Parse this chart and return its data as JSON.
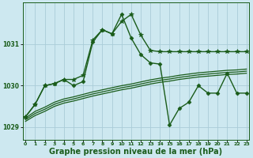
{
  "background_color": "#cde8f0",
  "line_color": "#1a5c1a",
  "grid_color": "#aaccd8",
  "xlabel": "Graphe pression niveau de la mer (hPa)",
  "xlabel_fontsize": 7,
  "ylabel_ticks": [
    1029,
    1030,
    1031
  ],
  "xlim": [
    -0.3,
    23.3
  ],
  "ylim": [
    1028.7,
    1032.0
  ],
  "xticks": [
    0,
    1,
    2,
    3,
    4,
    5,
    6,
    7,
    8,
    9,
    10,
    11,
    12,
    13,
    14,
    15,
    16,
    17,
    18,
    19,
    20,
    21,
    22,
    23
  ],
  "series": [
    {
      "x": [
        0,
        1,
        2,
        3,
        4,
        5,
        6,
        7,
        8,
        9,
        10,
        11,
        12,
        13,
        14,
        15,
        16,
        17,
        18,
        19,
        20,
        21,
        22,
        23
      ],
      "y": [
        1029.25,
        1029.55,
        1030.0,
        1030.05,
        1030.15,
        1030.15,
        1030.25,
        1031.1,
        1031.35,
        1031.25,
        1031.55,
        1031.72,
        1031.22,
        1030.85,
        1030.82,
        1030.82,
        1030.82,
        1030.82,
        1030.82,
        1030.82,
        1030.82,
        1030.82,
        1030.82,
        1030.82
      ],
      "marker": "*",
      "markersize": 4,
      "linewidth": 1.0
    },
    {
      "x": [
        0,
        1,
        2,
        3,
        4,
        5,
        6,
        7,
        8,
        9,
        10,
        11,
        12,
        13,
        14,
        15,
        16,
        17,
        18,
        19,
        20,
        21,
        22,
        23
      ],
      "y": [
        1029.25,
        1029.55,
        1030.0,
        1030.05,
        1030.15,
        1030.0,
        1030.1,
        1031.05,
        1031.35,
        1031.25,
        1031.72,
        1031.15,
        1030.75,
        1030.55,
        1030.52,
        1029.05,
        1029.45,
        1029.6,
        1030.0,
        1029.82,
        1029.82,
        1030.3,
        1029.82,
        1029.82
      ],
      "marker": "D",
      "markersize": 2.5,
      "linewidth": 1.0
    },
    {
      "x": [
        0,
        1,
        2,
        3,
        4,
        5,
        6,
        7,
        8,
        9,
        10,
        11,
        12,
        13,
        14,
        15,
        16,
        17,
        18,
        19,
        20,
        21,
        22,
        23
      ],
      "y": [
        1029.22,
        1029.38,
        1029.48,
        1029.6,
        1029.68,
        1029.73,
        1029.79,
        1029.85,
        1029.9,
        1029.95,
        1030.0,
        1030.04,
        1030.09,
        1030.14,
        1030.18,
        1030.21,
        1030.25,
        1030.28,
        1030.31,
        1030.33,
        1030.35,
        1030.37,
        1030.38,
        1030.4
      ],
      "marker": null,
      "markersize": 0,
      "linewidth": 0.9
    },
    {
      "x": [
        0,
        1,
        2,
        3,
        4,
        5,
        6,
        7,
        8,
        9,
        10,
        11,
        12,
        13,
        14,
        15,
        16,
        17,
        18,
        19,
        20,
        21,
        22,
        23
      ],
      "y": [
        1029.18,
        1029.33,
        1029.43,
        1029.55,
        1029.63,
        1029.68,
        1029.74,
        1029.8,
        1029.85,
        1029.9,
        1029.95,
        1029.99,
        1030.04,
        1030.09,
        1030.13,
        1030.16,
        1030.2,
        1030.23,
        1030.26,
        1030.28,
        1030.3,
        1030.32,
        1030.33,
        1030.35
      ],
      "marker": null,
      "markersize": 0,
      "linewidth": 0.9
    },
    {
      "x": [
        0,
        1,
        2,
        3,
        4,
        5,
        6,
        7,
        8,
        9,
        10,
        11,
        12,
        13,
        14,
        15,
        16,
        17,
        18,
        19,
        20,
        21,
        22,
        23
      ],
      "y": [
        1029.14,
        1029.28,
        1029.38,
        1029.5,
        1029.58,
        1029.63,
        1029.69,
        1029.75,
        1029.8,
        1029.85,
        1029.9,
        1029.94,
        1029.99,
        1030.04,
        1030.08,
        1030.11,
        1030.15,
        1030.18,
        1030.21,
        1030.23,
        1030.25,
        1030.27,
        1030.28,
        1030.3
      ],
      "marker": null,
      "markersize": 0,
      "linewidth": 0.9
    }
  ]
}
